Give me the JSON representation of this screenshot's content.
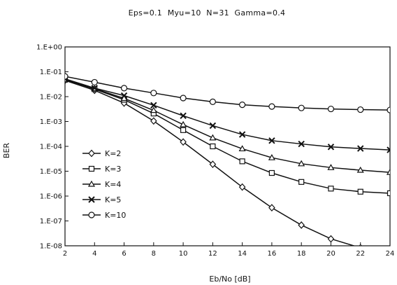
{
  "chart_data": {
    "type": "line",
    "title": "Eps=0.1  Myu=10  N=31  Gamma=0.4",
    "xlabel": "Eb/No [dB]",
    "ylabel": "BER",
    "x": [
      2,
      4,
      6,
      8,
      10,
      12,
      14,
      16,
      18,
      20,
      22,
      24
    ],
    "xlim": [
      2,
      24
    ],
    "xticks": [
      "2",
      "4",
      "6",
      "8",
      "10",
      "12",
      "14",
      "16",
      "18",
      "20",
      "22",
      "24"
    ],
    "ylim": [
      1e-08,
      1
    ],
    "yscale": "log",
    "yticks": [
      "1.E+00",
      "1.E-01",
      "1.E-02",
      "1.E-03",
      "1.E-04",
      "1.E-05",
      "1.E-06",
      "1.E-07",
      "1.E-08"
    ],
    "grid": false,
    "legend_position": "lower-left",
    "series": [
      {
        "name": "K=2",
        "marker": "diamond",
        "values": [
          0.045,
          0.018,
          0.0055,
          0.00105,
          0.00015,
          1.9e-05,
          2.3e-06,
          3.4e-07,
          6.8e-08,
          1.9e-08,
          8.3e-09,
          null
        ]
      },
      {
        "name": "K=3",
        "marker": "square",
        "values": [
          0.048,
          0.02,
          0.0075,
          0.0021,
          0.00045,
          0.0001,
          2.5e-05,
          8.5e-06,
          3.7e-06,
          2e-06,
          1.5e-06,
          1.3e-06
        ]
      },
      {
        "name": "K=4",
        "marker": "triangle",
        "values": [
          0.05,
          0.021,
          0.0085,
          0.0028,
          0.00075,
          0.00022,
          8e-05,
          3.5e-05,
          2e-05,
          1.4e-05,
          1.1e-05,
          9e-06
        ]
      },
      {
        "name": "K=5",
        "marker": "x",
        "values": [
          0.052,
          0.022,
          0.011,
          0.0045,
          0.0017,
          0.00068,
          0.0003,
          0.00017,
          0.000125,
          9.5e-05,
          8.2e-05,
          7.2e-05
        ]
      },
      {
        "name": "K=10",
        "marker": "circle",
        "values": [
          0.065,
          0.038,
          0.022,
          0.014,
          0.0088,
          0.0062,
          0.0047,
          0.004,
          0.0035,
          0.0032,
          0.003,
          0.0029
        ]
      }
    ]
  }
}
